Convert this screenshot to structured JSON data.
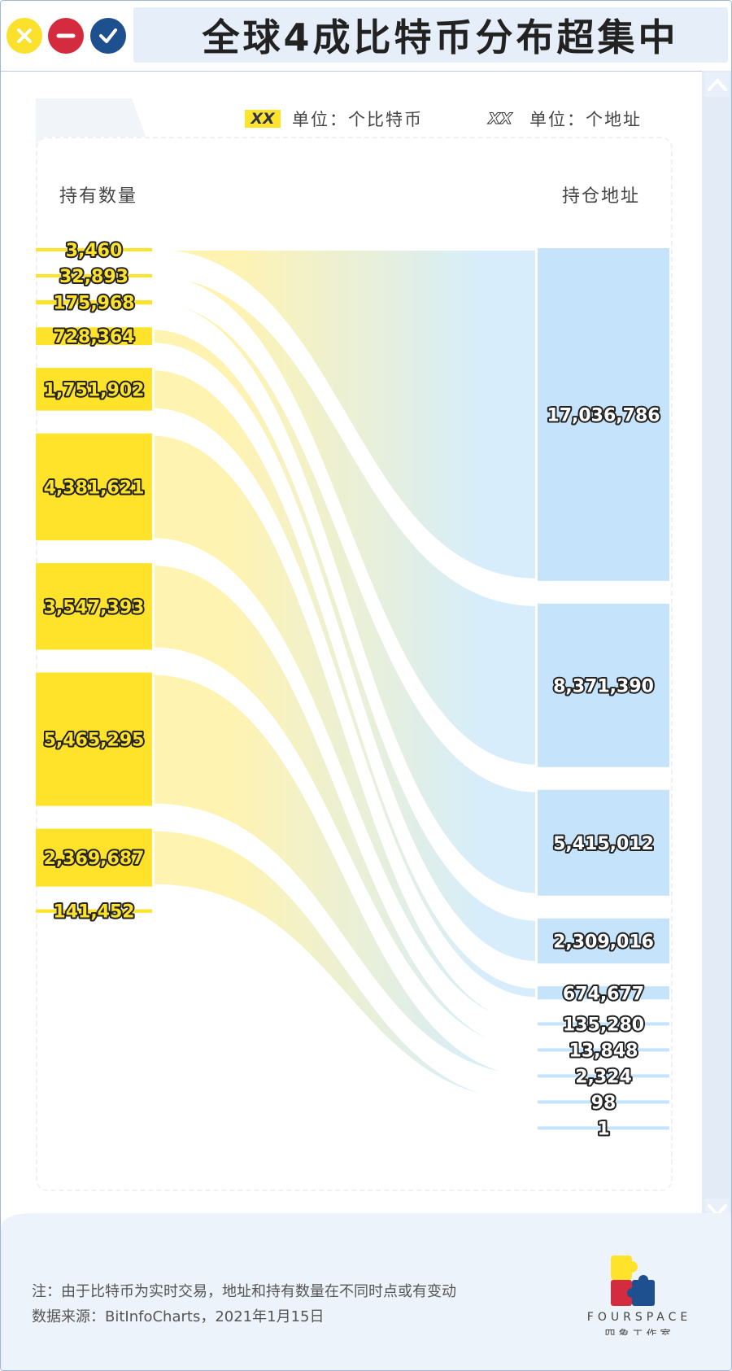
{
  "window": {
    "title": "全球4成比特币分布超集中",
    "buttons": [
      "close",
      "minimize",
      "confirm"
    ]
  },
  "legend": {
    "yellow_swatch": "XX",
    "yellow_text": "单位：个比特币",
    "blue_swatch": "XX",
    "blue_text": "单位：个地址"
  },
  "columns": {
    "left_label": "持有数量",
    "right_label": "持仓地址"
  },
  "colors": {
    "yellow": "#ffe32a",
    "blue": "#c5e4fb",
    "flow_yellow": "#fff3ad",
    "flow_blue": "#d5edfb",
    "outline": "#222222"
  },
  "chart_data": {
    "type": "sankey",
    "left_label": "持有数量",
    "right_label": "持仓地址",
    "left_unit": "单位：个比特币",
    "right_unit": "单位：个地址",
    "links": [
      {
        "coins": 3460,
        "addresses": 17036786
      },
      {
        "coins": 32893,
        "addresses": 8371390
      },
      {
        "coins": 175968,
        "addresses": 5415012
      },
      {
        "coins": 728364,
        "addresses": 2309016
      },
      {
        "coins": 1751902,
        "addresses": 674677
      },
      {
        "coins": 4381621,
        "addresses": 135280
      },
      {
        "coins": 3547393,
        "addresses": 13848
      },
      {
        "coins": 5465295,
        "addresses": 2324
      },
      {
        "coins": 2369687,
        "addresses": 98
      },
      {
        "coins": 141452,
        "addresses": 1
      }
    ],
    "left_labels": [
      "3,460",
      "32,893",
      "175,968",
      "728,364",
      "1,751,902",
      "4,381,621",
      "3,547,393",
      "5,465,295",
      "2,369,687",
      "141,452"
    ],
    "right_labels": [
      "17,036,786",
      "8,371,390",
      "5,415,012",
      "2,309,016",
      "674,677",
      "135,280",
      "13,848",
      "2,324",
      "98",
      "1"
    ]
  },
  "footer": {
    "note": "注：由于比特币为实时交易，地址和持有数量在不同时点或有变动",
    "source": "数据来源：BitInfoCharts，2021年1月15日",
    "brand": "FOURSPACE",
    "brand_sub": "四象工作室"
  }
}
